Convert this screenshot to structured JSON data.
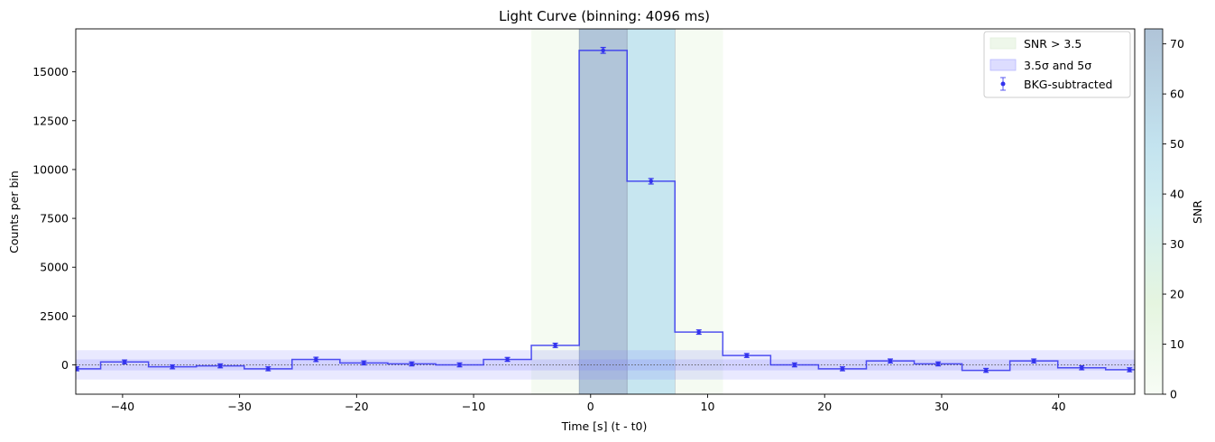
{
  "chart_data": {
    "type": "step",
    "title": "Light Curve (binning: 4096 ms)",
    "xlabel": "Time [s] (t - t0)",
    "ylabel": "Counts per bin",
    "xlim": [
      -44,
      46.5
    ],
    "ylim": [
      -1500,
      17200
    ],
    "x_ticks": [
      -40,
      -30,
      -20,
      -10,
      0,
      10,
      20,
      30,
      40
    ],
    "x_tick_labels": [
      "−40",
      "−30",
      "−20",
      "−10",
      "0",
      "10",
      "20",
      "30",
      "40"
    ],
    "y_ticks": [
      0,
      2500,
      5000,
      7500,
      10000,
      12500,
      15000
    ],
    "y_tick_labels": [
      "0",
      "2500",
      "5000",
      "7500",
      "10000",
      "12500",
      "15000"
    ],
    "bin_centers": [
      -43.92,
      -39.83,
      -35.74,
      -31.65,
      -27.56,
      -23.47,
      -19.38,
      -15.29,
      -11.2,
      -7.11,
      -3.02,
      1.07,
      5.16,
      9.25,
      13.34,
      17.43,
      21.52,
      25.61,
      29.7,
      33.79,
      37.88,
      41.97,
      46.06
    ],
    "bin_width_s": 4.096,
    "values": [
      -200,
      150,
      -100,
      -50,
      -200,
      280,
      100,
      50,
      0,
      280,
      1000,
      16100,
      9400,
      1680,
      480,
      0,
      -200,
      200,
      50,
      -280,
      200,
      -150,
      -250
    ],
    "errors": [
      100,
      100,
      100,
      100,
      100,
      110,
      100,
      100,
      100,
      100,
      110,
      150,
      140,
      110,
      100,
      100,
      100,
      100,
      100,
      100,
      100,
      100,
      100
    ],
    "snr_bins": [
      {
        "start": -5.07,
        "end": -0.97,
        "snr": 4
      },
      {
        "start": -0.97,
        "end": 3.12,
        "snr": 72
      },
      {
        "start": 3.12,
        "end": 7.22,
        "snr": 50
      },
      {
        "start": 7.22,
        "end": 11.31,
        "snr": 4
      }
    ],
    "sigma_band_inner": [
      -280,
      280
    ],
    "sigma_band_outer": [
      -750,
      750
    ],
    "legend": {
      "position": "upper right",
      "entries": [
        "SNR > 3.5",
        "3.5σ and 5σ",
        "BKG-subtracted"
      ]
    },
    "colorbar": {
      "label": "SNR",
      "range": [
        0,
        73
      ],
      "ticks": [
        0,
        10,
        20,
        30,
        40,
        50,
        60,
        70
      ],
      "tick_labels": [
        "0",
        "10",
        "20",
        "30",
        "40",
        "50",
        "60",
        "70"
      ]
    },
    "colors": {
      "line": "#3333ee",
      "band": "#7777ff",
      "snr_low": "#f7fcf5",
      "snr_mid": "#c7e6f0",
      "snr_high": "#b0c4d8"
    }
  }
}
